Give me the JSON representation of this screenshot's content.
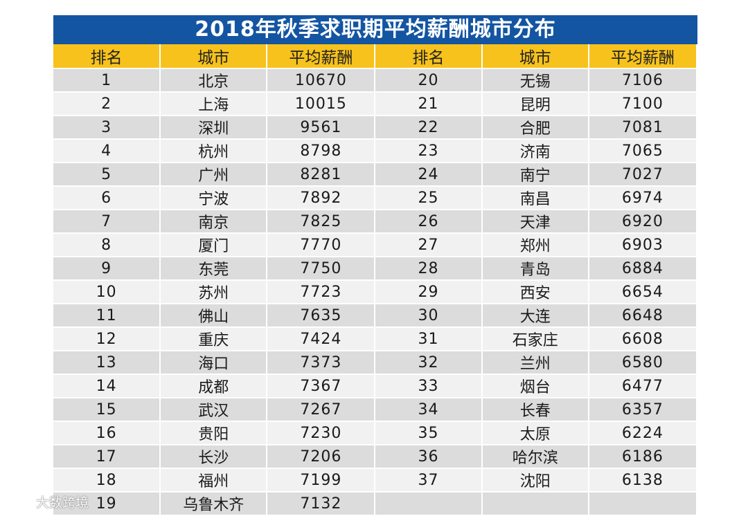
{
  "title": "2018年秋季求职期平均薪酬城市分布",
  "headers": [
    "排名",
    "城市",
    "平均薪酬",
    "排名",
    "城市",
    "平均薪酬"
  ],
  "rows": [
    [
      "1",
      "北京",
      "10670",
      "20",
      "无锡",
      "7106"
    ],
    [
      "2",
      "上海",
      "10015",
      "21",
      "昆明",
      "7100"
    ],
    [
      "3",
      "深圳",
      "9561",
      "22",
      "合肥",
      "7081"
    ],
    [
      "4",
      "杭州",
      "8798",
      "23",
      "济南",
      "7065"
    ],
    [
      "5",
      "广州",
      "8281",
      "24",
      "南宁",
      "7027"
    ],
    [
      "6",
      "宁波",
      "7892",
      "25",
      "南昌",
      "6974"
    ],
    [
      "7",
      "南京",
      "7825",
      "26",
      "天津",
      "6920"
    ],
    [
      "8",
      "厦门",
      "7770",
      "27",
      "郑州",
      "6903"
    ],
    [
      "9",
      "东莞",
      "7750",
      "28",
      "青岛",
      "6884"
    ],
    [
      "10",
      "苏州",
      "7723",
      "29",
      "西安",
      "6654"
    ],
    [
      "11",
      "佛山",
      "7635",
      "30",
      "大连",
      "6648"
    ],
    [
      "12",
      "重庆",
      "7424",
      "31",
      "石家庄",
      "6608"
    ],
    [
      "13",
      "海口",
      "7373",
      "32",
      "兰州",
      "6580"
    ],
    [
      "14",
      "成都",
      "7367",
      "33",
      "烟台",
      "6477"
    ],
    [
      "15",
      "武汉",
      "7267",
      "34",
      "长春",
      "6357"
    ],
    [
      "16",
      "贵阳",
      "7230",
      "35",
      "太原",
      "6224"
    ],
    [
      "17",
      "长沙",
      "7206",
      "36",
      "哈尔滨",
      "6186"
    ],
    [
      "18",
      "福州",
      "7199",
      "37",
      "沈阳",
      "6138"
    ],
    [
      "19",
      "乌鲁木齐",
      "7132",
      "",
      "",
      ""
    ]
  ],
  "watermark": {
    "text": "大数跨境",
    "icon": "weibo-logo-icon"
  },
  "colors": {
    "title_bg": "#1455a2",
    "header_bg": "#f7c21b",
    "row_dark": "#dcdcdc",
    "row_light": "#f1f1f1"
  }
}
